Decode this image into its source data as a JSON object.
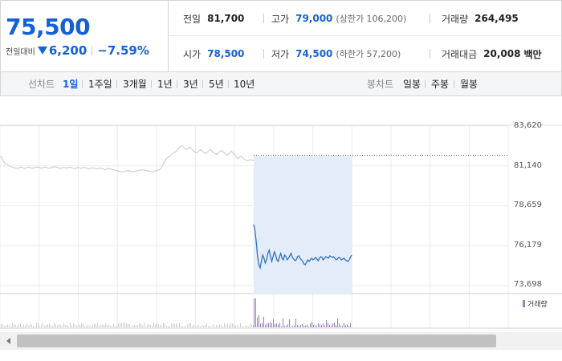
{
  "quote": {
    "price": "75,500",
    "change_label": "전일대비",
    "change_value": "6,200",
    "change_percent": "−7.59%",
    "direction": "down",
    "color_down": "#1262d6"
  },
  "stats": {
    "prev_close_label": "전일",
    "prev_close": "81,700",
    "high_label": "고가",
    "high": "79,000",
    "upper_limit": "(상한가 106,200)",
    "volume_label": "거래량",
    "volume": "264,495",
    "open_label": "시가",
    "open": "78,500",
    "low_label": "저가",
    "low": "74,500",
    "lower_limit": "(하한가 57,200)",
    "trade_value_label": "거래대금",
    "trade_value": "20,008",
    "trade_value_unit": "백만"
  },
  "tabs": {
    "line_label": "선차트",
    "line_tabs": [
      "1일",
      "1주일",
      "3개월",
      "1년",
      "3년",
      "5년",
      "10년"
    ],
    "active_line_tab": "1일",
    "candle_label": "봉차트",
    "candle_tabs": [
      "일봉",
      "주봉",
      "월봉"
    ]
  },
  "chart_data": {
    "type": "line",
    "y_ticks": [
      "83,620",
      "81,140",
      "78,659",
      "76,179",
      "73,698"
    ],
    "ylim": [
      73698,
      83620
    ],
    "prev_close_reference": 81700,
    "volume_legend": "거래량",
    "colors": {
      "prev_day_line": "#cfcfcf",
      "today_line": "#2f73c4",
      "today_band": "#e3ecf8",
      "volume": "#9b7fc0",
      "volume_prev": "#cfcfcf"
    },
    "previous_session": [
      81720,
      81680,
      81450,
      81300,
      81250,
      81180,
      81120,
      81080,
      81050,
      81020,
      81000,
      80980,
      81010,
      81050,
      81020,
      80990,
      81000,
      81030,
      81060,
      81020,
      80990,
      81010,
      81040,
      81070,
      81050,
      81020,
      81000,
      81030,
      81060,
      81040,
      81010,
      80990,
      81020,
      81050,
      81080,
      81060,
      81030,
      81000,
      80980,
      81010,
      81040,
      81020,
      81000,
      81030,
      81050,
      81020,
      80990,
      80970,
      81000,
      81030,
      81010,
      80990,
      81020,
      81040,
      81010,
      80980,
      80960,
      80990,
      81010,
      80990,
      80970,
      80950,
      80980,
      81000,
      80970,
      80940,
      80920,
      80950,
      80980,
      80960,
      80930,
      80900,
      80880,
      80860,
      80830,
      80800,
      80780,
      80770,
      80790,
      80820,
      80850,
      80830,
      80810,
      80790,
      80780,
      80800,
      80830,
      80860,
      80880,
      80900,
      80890,
      80870,
      80850,
      80820,
      80800,
      80780,
      80790,
      80810,
      80840,
      80870,
      80900,
      81000,
      81200,
      81400,
      81550,
      81650,
      81700,
      81800,
      81900,
      81950,
      82000,
      82100,
      82250,
      82350,
      82400,
      82300,
      82200,
      82150,
      82250,
      82300,
      82200,
      82100,
      82000,
      81950,
      82000,
      82100,
      82150,
      82050,
      81950,
      81900,
      82000,
      82100,
      82150,
      82050,
      81950,
      81900,
      81850,
      81950,
      82050,
      82100,
      82000,
      81900,
      81800,
      81850,
      81950,
      82050,
      81950,
      81850,
      81700,
      81600,
      81650,
      81750,
      81650,
      81550,
      81500,
      81450,
      81480,
      81520,
      81500,
      81480
    ],
    "today_session": [
      77500,
      77100,
      76400,
      75500,
      75000,
      74800,
      75200,
      75600,
      75400,
      75100,
      75300,
      75700,
      75900,
      75500,
      75200,
      75500,
      75800,
      75600,
      75300,
      75200,
      75500,
      75700,
      75400,
      75300,
      75600,
      75500,
      75300,
      75400,
      75550,
      75700,
      75450,
      75350,
      75250,
      75300,
      75500,
      75550,
      75400,
      75300,
      75200,
      75050,
      75000,
      75150,
      75300,
      75200,
      75300,
      75400,
      75300,
      75350,
      75450,
      75350,
      75250,
      75400,
      75500,
      75450,
      75300,
      75400,
      75500,
      75450,
      75400,
      75550,
      75500,
      75450,
      75500,
      75400,
      75300,
      75350,
      75450,
      75400,
      75300,
      75350,
      75400,
      75300,
      75250,
      75200,
      75300,
      75450,
      75600
    ]
  }
}
